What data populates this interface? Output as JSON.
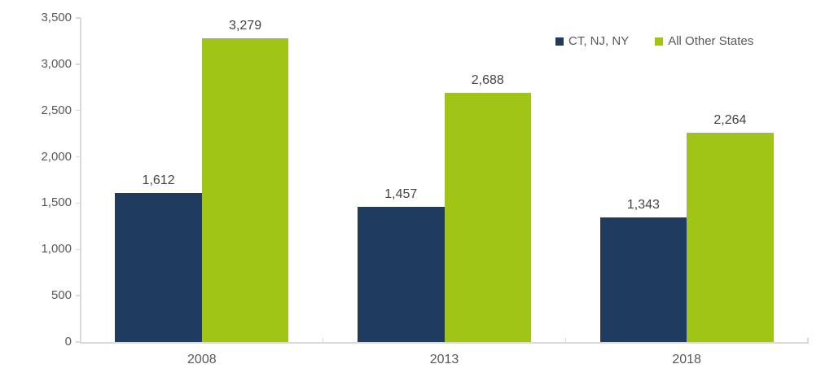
{
  "chart_data": {
    "type": "bar",
    "title": "",
    "xlabel": "",
    "ylabel": "",
    "categories": [
      "2008",
      "2013",
      "2018"
    ],
    "series": [
      {
        "name": "CT, NJ, NY",
        "color": "#1F3C60",
        "values": [
          1612,
          1457,
          1343
        ],
        "labels": [
          "1,612",
          "1,457",
          "1,343"
        ]
      },
      {
        "name": "All Other States",
        "color": "#A0C516",
        "values": [
          3279,
          2688,
          2264
        ],
        "labels": [
          "3,279",
          "2,688",
          "2,264"
        ]
      }
    ],
    "ylim": [
      0,
      3500
    ],
    "yticks": [
      0,
      500,
      1000,
      1500,
      2000,
      2500,
      3000,
      3500
    ],
    "ytick_labels": [
      "0",
      "500",
      "1,000",
      "1,500",
      "2,000",
      "2,500",
      "3,000",
      "3,500"
    ],
    "grid": false,
    "legend_position": "top-right"
  },
  "colors": {
    "axis_line": "#D9D9D9",
    "tick_label_text": "#595959",
    "data_label_text": "#444444",
    "background": "#FFFFFF"
  }
}
